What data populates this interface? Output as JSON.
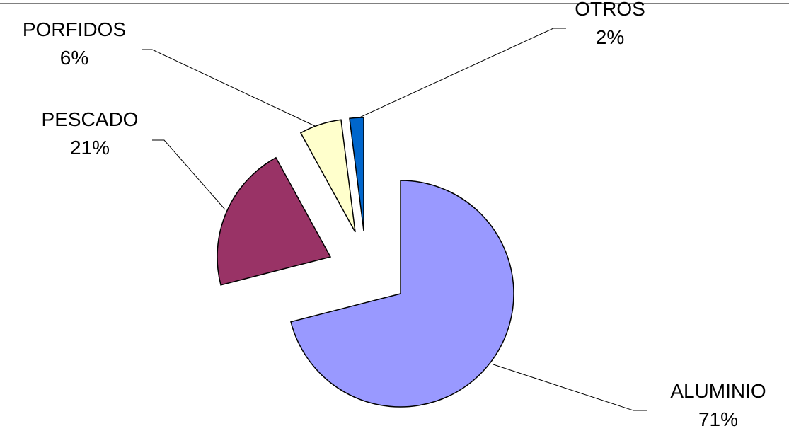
{
  "chart_data": {
    "type": "pie",
    "categories": [
      "ALUMINIO",
      "PESCADO",
      "PORFIDOS",
      "OTROS"
    ],
    "values": [
      71,
      21,
      6,
      2
    ],
    "value_labels": [
      "71%",
      "21%",
      "6%",
      "2%"
    ],
    "colors": [
      "#9999ff",
      "#993366",
      "#ffffcc",
      "#0066cc"
    ]
  }
}
